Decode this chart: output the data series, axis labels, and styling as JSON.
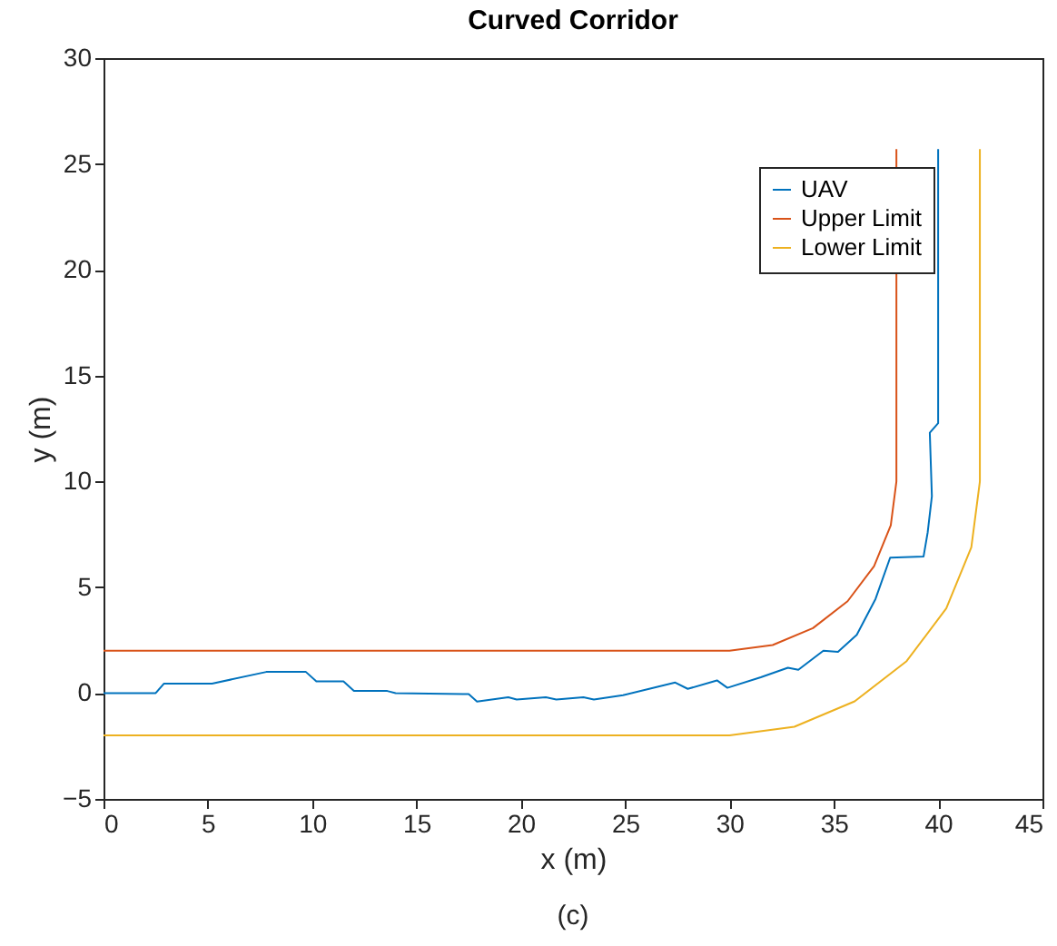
{
  "chart_data": {
    "type": "line",
    "title": "Curved Corridor",
    "xlabel": "x (m)",
    "ylabel": "y (m)",
    "annotations": [
      "(c)"
    ],
    "xlim": [
      0,
      45
    ],
    "ylim": [
      -5,
      30
    ],
    "xticks": [
      0,
      5,
      10,
      15,
      20,
      25,
      30,
      35,
      40,
      45
    ],
    "yticks": [
      -5,
      0,
      5,
      10,
      15,
      20,
      25,
      30
    ],
    "legend": "top right",
    "series": [
      {
        "name": "UAV",
        "color": "#0072bd",
        "x": [
          0,
          2.5,
          2.9,
          5.2,
          7.8,
          9.7,
          10.2,
          11.5,
          12.0,
          13.6,
          14.0,
          17.5,
          17.9,
          19.4,
          19.8,
          21.2,
          21.7,
          23.0,
          23.5,
          24.9,
          27.4,
          28.0,
          29.4,
          29.9,
          31.5,
          32.8,
          33.3,
          34.5,
          35.2,
          36.1,
          37.0,
          37.7,
          39.3,
          39.5,
          39.7,
          39.6,
          40.0,
          40.0,
          40.0
        ],
        "values": [
          0,
          0,
          0.45,
          0.45,
          1.0,
          1.0,
          0.55,
          0.55,
          0.1,
          0.1,
          0,
          -0.05,
          -0.4,
          -0.2,
          -0.3,
          -0.2,
          -0.3,
          -0.2,
          -0.3,
          -0.1,
          0.5,
          0.2,
          0.6,
          0.25,
          0.75,
          1.2,
          1.1,
          2.0,
          1.95,
          2.75,
          4.45,
          6.4,
          6.45,
          7.6,
          9.3,
          12.3,
          12.75,
          18.2,
          25.7
        ]
      },
      {
        "name": "Upper Limit",
        "color": "#d95319",
        "x": [
          0,
          30,
          32.07,
          34.0,
          35.66,
          36.93,
          37.73,
          38,
          38
        ],
        "values": [
          2,
          2,
          2.27,
          3.07,
          4.34,
          6.0,
          7.93,
          10,
          25.7
        ]
      },
      {
        "name": "Lower Limit",
        "color": "#edb120",
        "x": [
          0,
          30,
          33.11,
          36.0,
          38.49,
          40.39,
          41.59,
          42,
          42
        ],
        "values": [
          -2,
          -2,
          -1.59,
          -0.39,
          1.51,
          4.0,
          6.89,
          10,
          25.7
        ]
      }
    ]
  }
}
